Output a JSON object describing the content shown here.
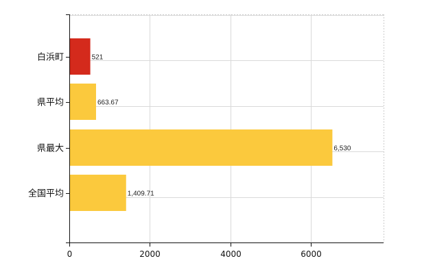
{
  "chart_data": {
    "type": "bar",
    "orientation": "horizontal",
    "categories": [
      "白浜町",
      "県平均",
      "県最大",
      "全国平均"
    ],
    "values": [
      521,
      663.67,
      6530,
      1409.71
    ],
    "value_labels": [
      "521",
      "663.67",
      "6,530",
      "1,409.71"
    ],
    "bar_colors": [
      "#d42a1c",
      "#fbc93d",
      "#fbc93d",
      "#fbc93d"
    ],
    "xlim": [
      0,
      7800
    ],
    "x_ticks": [
      0,
      2000,
      4000,
      6000
    ],
    "x_tick_labels": [
      "0",
      "2000",
      "4000",
      "6000"
    ],
    "grid": true,
    "legend": "none"
  }
}
